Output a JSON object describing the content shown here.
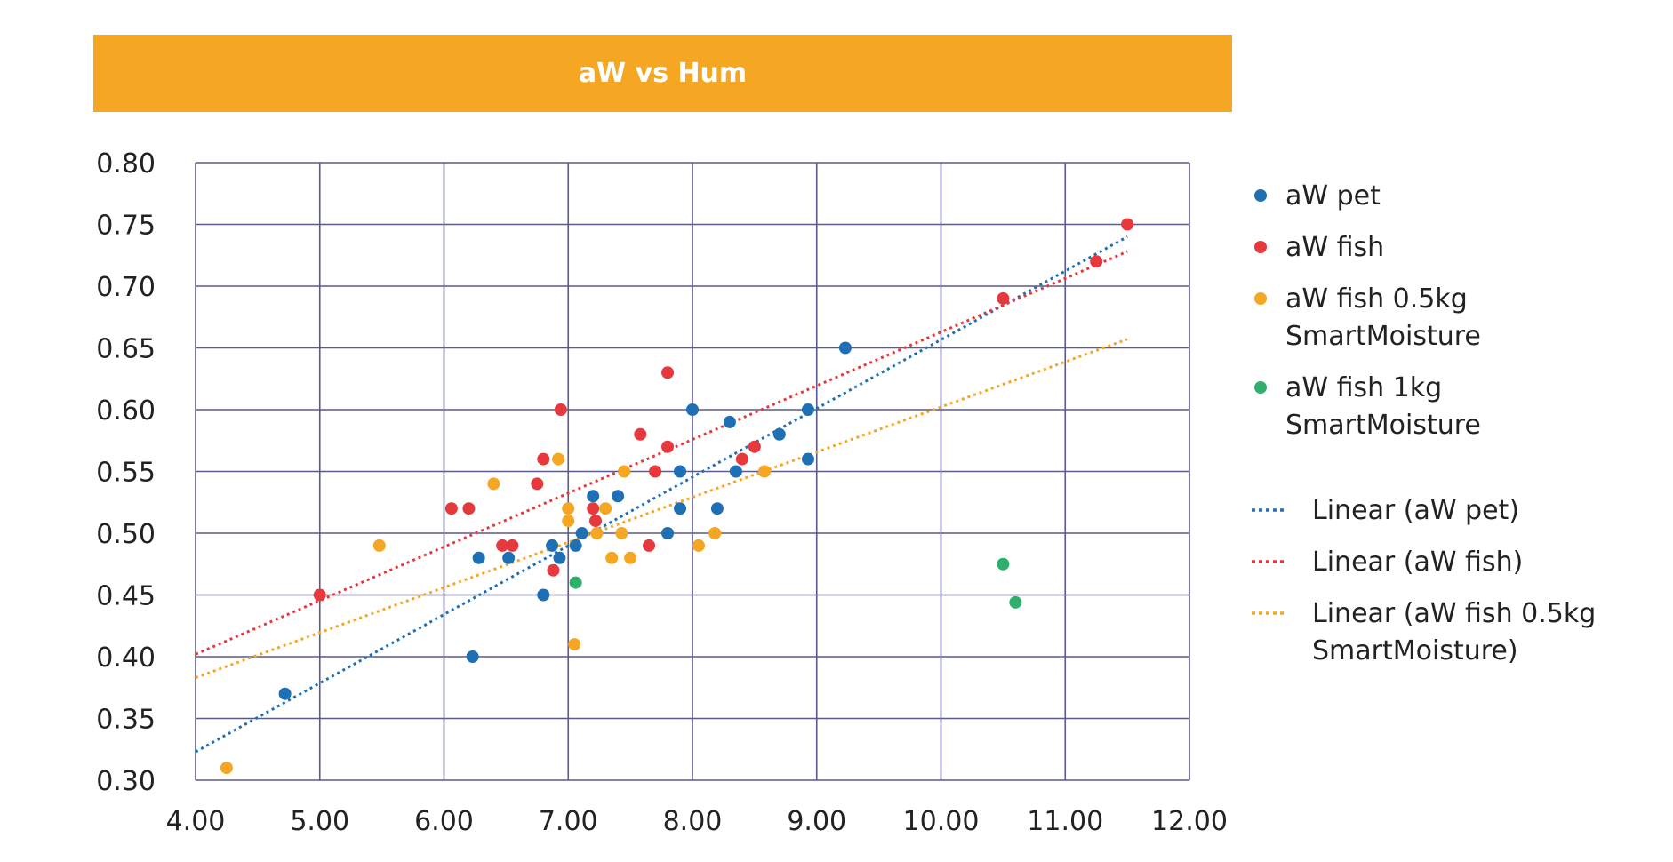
{
  "chart_data": {
    "type": "scatter",
    "title": "aW vs Hum",
    "xlim": [
      4.0,
      12.0
    ],
    "ylim": [
      0.3,
      0.8
    ],
    "x_ticks": [
      "4.00",
      "5.00",
      "6.00",
      "7.00",
      "8.00",
      "9.00",
      "10.00",
      "11.00",
      "12.00"
    ],
    "y_ticks": [
      "0.30",
      "0.35",
      "0.40",
      "0.45",
      "0.50",
      "0.55",
      "0.60",
      "0.65",
      "0.70",
      "0.75",
      "0.80"
    ],
    "grid": true,
    "legend_position": "right",
    "series": [
      {
        "name": "aW pet",
        "color": "#1F6FB4",
        "points": [
          [
            4.72,
            0.37
          ],
          [
            6.23,
            0.4
          ],
          [
            6.28,
            0.48
          ],
          [
            6.52,
            0.48
          ],
          [
            6.8,
            0.45
          ],
          [
            6.87,
            0.49
          ],
          [
            6.93,
            0.48
          ],
          [
            7.06,
            0.49
          ],
          [
            7.11,
            0.5
          ],
          [
            7.2,
            0.53
          ],
          [
            7.4,
            0.53
          ],
          [
            7.8,
            0.5
          ],
          [
            7.9,
            0.52
          ],
          [
            7.9,
            0.55
          ],
          [
            8.0,
            0.6
          ],
          [
            8.2,
            0.52
          ],
          [
            8.3,
            0.59
          ],
          [
            8.35,
            0.55
          ],
          [
            8.7,
            0.58
          ],
          [
            8.93,
            0.56
          ],
          [
            8.93,
            0.6
          ],
          [
            9.23,
            0.65
          ]
        ]
      },
      {
        "name": "aW fish",
        "color": "#E5393D",
        "points": [
          [
            5.0,
            0.45
          ],
          [
            6.06,
            0.52
          ],
          [
            6.2,
            0.52
          ],
          [
            6.47,
            0.49
          ],
          [
            6.55,
            0.49
          ],
          [
            6.75,
            0.54
          ],
          [
            6.8,
            0.56
          ],
          [
            6.88,
            0.47
          ],
          [
            6.94,
            0.6
          ],
          [
            7.2,
            0.52
          ],
          [
            7.22,
            0.51
          ],
          [
            7.58,
            0.58
          ],
          [
            7.65,
            0.49
          ],
          [
            7.7,
            0.55
          ],
          [
            7.8,
            0.57
          ],
          [
            7.8,
            0.63
          ],
          [
            8.4,
            0.56
          ],
          [
            8.5,
            0.57
          ],
          [
            10.5,
            0.69
          ],
          [
            11.25,
            0.72
          ],
          [
            11.5,
            0.75
          ]
        ]
      },
      {
        "name": "aW fish 0.5kg\nSmartMoisture",
        "color": "#F5A623",
        "points": [
          [
            4.25,
            0.31
          ],
          [
            5.48,
            0.49
          ],
          [
            6.4,
            0.54
          ],
          [
            6.92,
            0.56
          ],
          [
            7.0,
            0.51
          ],
          [
            7.0,
            0.52
          ],
          [
            7.05,
            0.41
          ],
          [
            7.23,
            0.5
          ],
          [
            7.3,
            0.52
          ],
          [
            7.35,
            0.48
          ],
          [
            7.43,
            0.5
          ],
          [
            7.45,
            0.55
          ],
          [
            7.5,
            0.48
          ],
          [
            8.05,
            0.49
          ],
          [
            8.18,
            0.5
          ],
          [
            8.58,
            0.55
          ]
        ]
      },
      {
        "name": "aW fish 1kg\nSmartMoisture",
        "color": "#2EAF6B",
        "points": [
          [
            7.06,
            0.46
          ],
          [
            10.5,
            0.475
          ],
          [
            10.6,
            0.444
          ]
        ]
      }
    ],
    "trendlines": [
      {
        "name": "Linear (aW pet)",
        "color": "#1F6FB4",
        "start": [
          4.0,
          0.323
        ],
        "end": [
          11.5,
          0.74
        ]
      },
      {
        "name": "Linear (aW fish)",
        "color": "#E5393D",
        "start": [
          4.0,
          0.402
        ],
        "end": [
          11.5,
          0.728
        ]
      },
      {
        "name": "Linear (aW fish 0.5kg\nSmartMoisture)",
        "color": "#F5A623",
        "start": [
          4.0,
          0.383
        ],
        "end": [
          11.5,
          0.657
        ]
      }
    ]
  }
}
